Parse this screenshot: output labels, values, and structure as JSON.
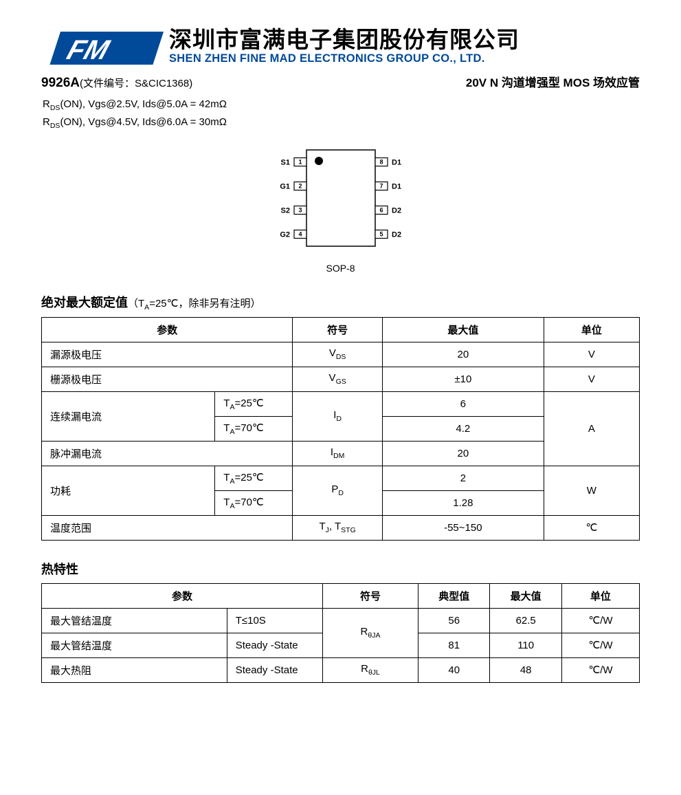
{
  "company": {
    "name_cn": "深圳市富满电子集团股份有限公司",
    "name_en": "SHEN ZHEN FINE MAD ELECTRONICS GROUP CO., LTD.",
    "logo": {
      "text": "FM",
      "bg_color": "#00448f",
      "fg_color": "#ffffff",
      "skew_color": "#004a99"
    }
  },
  "part_number": "9926A",
  "doc_label": "(文件编号：S&CIC1368)",
  "product_type": "20V N 沟道增强型 MOS 场效应管",
  "spec_line1_pre": "R",
  "spec_line1_sub": "DS",
  "spec_line1_rest": "(ON), Vgs@2.5V, Ids@5.0A = 42mΩ",
  "spec_line2_pre": "R",
  "spec_line2_sub": "DS",
  "spec_line2_rest": "(ON), Vgs@4.5V, Ids@6.0A = 30mΩ",
  "package": {
    "label": "SOP-8",
    "body_w": 100,
    "body_h": 140,
    "dot_r": 6,
    "pins_left": [
      {
        "n": "1",
        "lbl": "S1"
      },
      {
        "n": "2",
        "lbl": "G1"
      },
      {
        "n": "3",
        "lbl": "S2"
      },
      {
        "n": "4",
        "lbl": "G2"
      }
    ],
    "pins_right": [
      {
        "n": "8",
        "lbl": "D1"
      },
      {
        "n": "7",
        "lbl": "D1"
      },
      {
        "n": "6",
        "lbl": "D2"
      },
      {
        "n": "5",
        "lbl": "D2"
      }
    ],
    "stroke": "#000000",
    "fill": "#ffffff"
  },
  "abs_max": {
    "title": "绝对最大额定值",
    "note_pre": "（T",
    "note_sub": "A",
    "note_post": "=25℃，除非另有注明）",
    "headers": {
      "param": "参数",
      "symbol": "符号",
      "max": "最大值",
      "unit": "单位"
    },
    "r1": {
      "param": "漏源极电压",
      "sym": "V",
      "sub": "DS",
      "max": "20",
      "unit": "V"
    },
    "r2": {
      "param": "栅源极电压",
      "sym": "V",
      "sub": "GS",
      "max": "±10",
      "unit": "V"
    },
    "r3": {
      "param": "连续漏电流",
      "c1_pre": "T",
      "c1_sub": "A",
      "c1_post": "=25℃",
      "c2_pre": "T",
      "c2_sub": "A",
      "c2_post": "=70℃",
      "sym": "I",
      "sub": "D",
      "m1": "6",
      "m2": "4.2",
      "unit": "A"
    },
    "r4": {
      "param": "脉冲漏电流",
      "sym": "I",
      "sub": "DM",
      "max": "20"
    },
    "r5": {
      "param": "功耗",
      "c1_pre": "T",
      "c1_sub": "A",
      "c1_post": "=25℃",
      "c2_pre": "T",
      "c2_sub": "A",
      "c2_post": "=70℃",
      "sym": "P",
      "sub": "D",
      "m1": "2",
      "m2": "1.28",
      "unit": "W"
    },
    "r6": {
      "param": "温度范围",
      "sym1": "T",
      "sub1": "J",
      "sep": ", ",
      "sym2": "T",
      "sub2": "STG",
      "max": "-55~150",
      "unit": "℃"
    }
  },
  "thermal": {
    "title": "热特性",
    "headers": {
      "param": "参数",
      "symbol": "符号",
      "typ": "典型值",
      "max": "最大值",
      "unit": "单位"
    },
    "r1": {
      "param": "最大管结温度",
      "cond": "T≤10S",
      "sym": "R",
      "sub": "θJA",
      "typ": "56",
      "max": "62.5",
      "unit": "℃/W"
    },
    "r2": {
      "param": "最大管结温度",
      "cond": "Steady -State",
      "typ": "81",
      "max": "110",
      "unit": "℃/W"
    },
    "r3": {
      "param": "最大热阻",
      "cond": "Steady -State",
      "sym": "R",
      "sub": "θJL",
      "typ": "40",
      "max": "48",
      "unit": "℃/W"
    }
  }
}
